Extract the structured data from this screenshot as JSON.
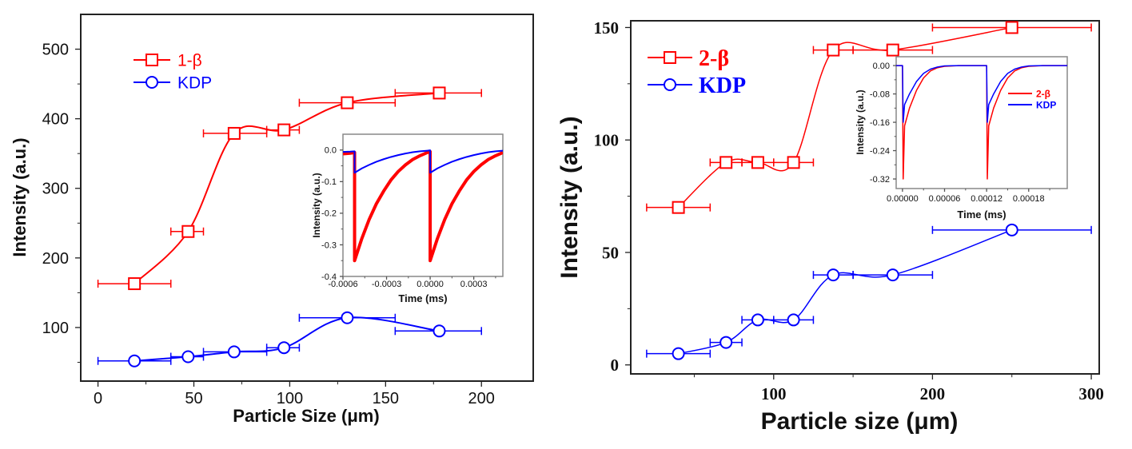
{
  "chart_data": [
    {
      "type": "line",
      "title": "",
      "xlabel": "Particle Size (μm)",
      "ylabel": "Intensity (a.u.)",
      "xlim": [
        -9,
        227
      ],
      "ylim": [
        23,
        550
      ],
      "xticks": [
        0,
        50,
        100,
        150,
        200
      ],
      "xtick_labels": [
        "0",
        "50",
        "100",
        "150",
        "200"
      ],
      "xminor": [
        25,
        75,
        125,
        175
      ],
      "yticks": [
        100,
        200,
        300,
        400,
        500
      ],
      "ytick_labels": [
        "100",
        "200",
        "300",
        "400",
        "500"
      ],
      "yminor": [
        50,
        150,
        250,
        350,
        450
      ],
      "grid": false,
      "legend": "top-left",
      "series": [
        {
          "name": "1-β",
          "color": "#ff0000",
          "marker": "square",
          "smooth": true,
          "x": [
            19,
            47,
            71,
            97,
            130,
            178
          ],
          "y": [
            163,
            238,
            379,
            384,
            423,
            437
          ],
          "xerr": [
            [
              0,
              38
            ],
            [
              38,
              55
            ],
            [
              55,
              88
            ],
            [
              88,
              105
            ],
            [
              105,
              155
            ],
            [
              155,
              200
            ]
          ]
        },
        {
          "name": "KDP",
          "color": "#0000ff",
          "marker": "circle",
          "smooth": true,
          "x": [
            19,
            47,
            71,
            97,
            130,
            178
          ],
          "y": [
            52,
            58,
            65,
            71,
            114,
            95
          ],
          "xerr": [
            [
              0,
              38
            ],
            [
              38,
              55
            ],
            [
              55,
              88
            ],
            [
              88,
              105
            ],
            [
              105,
              155
            ],
            [
              155,
              200
            ]
          ]
        }
      ]
    },
    {
      "type": "line",
      "title": "",
      "xlabel": "Time (ms)",
      "ylabel": "Intensity (a.u.)",
      "xlim": [
        -0.0006,
        0.0005
      ],
      "ylim": [
        -0.4,
        0.05
      ],
      "xticks": [
        -0.0006,
        -0.0003,
        0,
        0.0003
      ],
      "xtick_labels": [
        "-0.0006",
        "-0.0003",
        "0.0000",
        "0.0003"
      ],
      "xminor": [
        -0.00045,
        -0.00015,
        0.00015,
        0.00045
      ],
      "yticks": [
        0,
        -0.1,
        -0.2,
        -0.3,
        -0.4
      ],
      "ytick_labels": [
        "0.0",
        "-0.1",
        "-0.2",
        "-0.3",
        "-0.4"
      ],
      "yminor": [
        -0.05,
        -0.15,
        -0.25,
        -0.35
      ],
      "grid": false,
      "legend": "none",
      "series": [
        {
          "color": "#ff0000",
          "width": 4,
          "x": [
            -0.0006,
            -0.00055,
            -0.00052,
            -0.00052,
            -0.00047,
            -0.00042,
            -0.00037,
            -0.00032,
            -0.00027,
            -0.00022,
            -0.00017,
            -0.00012,
            -7e-05,
            -2e-05,
            0,
            0,
            5e-05,
            0.0001,
            0.00015,
            0.0002,
            0.00025,
            0.0003,
            0.00035,
            0.0004,
            0.00045,
            0.0005
          ],
          "y": [
            -0.012,
            -0.01,
            -0.008,
            -0.35,
            -0.28,
            -0.22,
            -0.17,
            -0.13,
            -0.095,
            -0.068,
            -0.047,
            -0.03,
            -0.018,
            -0.008,
            -0.005,
            -0.35,
            -0.28,
            -0.22,
            -0.17,
            -0.13,
            -0.095,
            -0.068,
            -0.047,
            -0.03,
            -0.018,
            -0.008
          ]
        },
        {
          "color": "#0000ff",
          "width": 2,
          "x": [
            -0.0006,
            -0.00055,
            -0.00052,
            -0.00052,
            -0.00047,
            -0.00042,
            -0.00037,
            -0.00032,
            -0.00027,
            -0.00022,
            -0.00017,
            -0.00012,
            -7e-05,
            -2e-05,
            0,
            0,
            5e-05,
            0.0001,
            0.00015,
            0.0002,
            0.00025,
            0.0003,
            0.00035,
            0.0004,
            0.00045,
            0.0005
          ],
          "y": [
            -0.006,
            -0.005,
            -0.004,
            -0.072,
            -0.058,
            -0.047,
            -0.037,
            -0.029,
            -0.022,
            -0.016,
            -0.011,
            -0.007,
            -0.004,
            -0.002,
            -0.001,
            -0.072,
            -0.058,
            -0.047,
            -0.037,
            -0.029,
            -0.022,
            -0.016,
            -0.011,
            -0.007,
            -0.004,
            -0.002
          ]
        }
      ]
    },
    {
      "type": "line",
      "title": "",
      "xlabel": "Particle size (μm)",
      "ylabel": "Intensity (a.u.)",
      "xlim": [
        10,
        305
      ],
      "ylim": [
        -4,
        153
      ],
      "xticks": [
        100,
        200,
        300
      ],
      "xtick_labels": [
        "100",
        "200",
        "300"
      ],
      "xminor": [
        50,
        150,
        250
      ],
      "yticks": [
        0,
        50,
        100,
        150
      ],
      "ytick_labels": [
        "0",
        "50",
        "100",
        "150"
      ],
      "yminor": [
        25,
        75,
        125
      ],
      "grid": false,
      "legend": "top-left",
      "series": [
        {
          "name": "2-β",
          "color": "#ff0000",
          "marker": "square",
          "smooth": true,
          "x": [
            40,
            70,
            90,
            112.5,
            137.5,
            175,
            250
          ],
          "y": [
            70,
            90,
            90,
            90,
            140,
            140,
            150
          ],
          "xerr": [
            [
              20,
              60
            ],
            [
              60,
              80
            ],
            [
              80,
              100
            ],
            [
              100,
              125
            ],
            [
              125,
              150
            ],
            [
              150,
              200
            ],
            [
              200,
              300
            ]
          ]
        },
        {
          "name": "KDP",
          "color": "#0000ff",
          "marker": "circle",
          "smooth": true,
          "x": [
            40,
            70,
            90,
            112.5,
            137.5,
            175,
            250
          ],
          "y": [
            5,
            10,
            20,
            20,
            40,
            40,
            60
          ],
          "xerr": [
            [
              20,
              60
            ],
            [
              60,
              80
            ],
            [
              80,
              100
            ],
            [
              100,
              125
            ],
            [
              125,
              150
            ],
            [
              150,
              200
            ],
            [
              200,
              300
            ]
          ]
        }
      ]
    },
    {
      "type": "line",
      "title": "",
      "xlabel": "Time (ms)",
      "ylabel": "Intensity (a.u.)",
      "xlim": [
        -9e-06,
        0.000235
      ],
      "ylim": [
        -0.347,
        0.025
      ],
      "xticks": [
        0,
        6e-05,
        0.00012,
        0.00018
      ],
      "xtick_labels": [
        "0.00000",
        "0.00006",
        "0.00012",
        "0.00018"
      ],
      "xminor": [
        3e-05,
        9e-05,
        0.00015,
        0.00021
      ],
      "yticks": [
        0,
        -0.08,
        -0.16,
        -0.24,
        -0.32
      ],
      "ytick_labels": [
        "0.00",
        "-0.08",
        "-0.16",
        "-0.24",
        "-0.32"
      ],
      "yminor": [
        -0.04,
        -0.12,
        -0.2,
        -0.28
      ],
      "grid": false,
      "legend": "right",
      "series": [
        {
          "name": "2-β",
          "color": "#ff0000",
          "width": 1.5,
          "x": [
            -9e-06,
            0,
            1e-06,
            3e-06,
            1e-05,
            2e-05,
            3e-05,
            4e-05,
            5e-05,
            6e-05,
            8e-05,
            0.00012,
            0.000121,
            0.000123,
            0.00013,
            0.00014,
            0.00015,
            0.00016,
            0.00017,
            0.00018,
            0.0002,
            0.000235
          ],
          "y": [
            0,
            0,
            -0.32,
            -0.17,
            -0.12,
            -0.07,
            -0.035,
            -0.015,
            -0.006,
            -0.002,
            0,
            0,
            -0.32,
            -0.17,
            -0.12,
            -0.07,
            -0.035,
            -0.015,
            -0.006,
            -0.002,
            0,
            0
          ]
        },
        {
          "name": "KDP",
          "color": "#0000ff",
          "width": 1.5,
          "x": [
            -9e-06,
            0,
            1e-06,
            3e-06,
            1e-05,
            2e-05,
            3e-05,
            4e-05,
            5e-05,
            6e-05,
            8e-05,
            0.00012,
            0.000121,
            0.000123,
            0.00013,
            0.00014,
            0.00015,
            0.00016,
            0.00017,
            0.00018,
            0.0002,
            0.000235
          ],
          "y": [
            0,
            0,
            -0.16,
            -0.11,
            -0.08,
            -0.045,
            -0.022,
            -0.01,
            -0.004,
            -0.001,
            0,
            0,
            -0.16,
            -0.11,
            -0.08,
            -0.045,
            -0.022,
            -0.01,
            -0.004,
            -0.001,
            0,
            0
          ]
        }
      ]
    }
  ]
}
